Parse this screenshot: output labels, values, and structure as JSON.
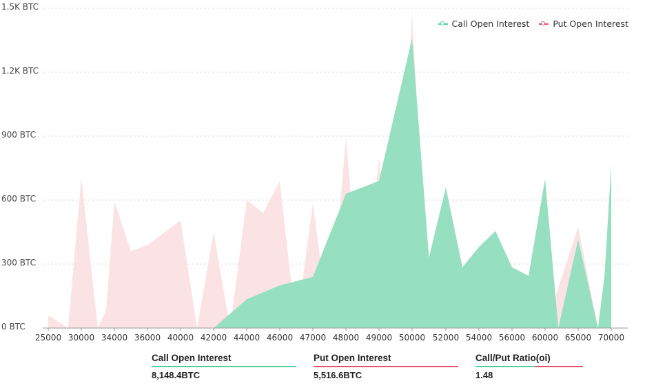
{
  "colors": {
    "call": "#4ecf9b",
    "call_fill": "#96dfc0",
    "put": "#e8506a",
    "put_fill": "#fbe3e5",
    "grid": "#dddddd"
  },
  "legend": {
    "call_label": "Call Open Interest",
    "put_label": "Put  Open Interest"
  },
  "y_axis": {
    "ticks": [
      {
        "label": "1.5K BTC",
        "value": 1500
      },
      {
        "label": "1.2K BTC",
        "value": 1200
      },
      {
        "label": "900 BTC",
        "value": 900
      },
      {
        "label": "600 BTC",
        "value": 600
      },
      {
        "label": "300 BTC",
        "value": 300
      },
      {
        "label": "0 BTC",
        "value": 0
      }
    ]
  },
  "x_axis": {
    "labels": [
      "25000",
      "30000",
      "34000",
      "36000",
      "40000",
      "42000",
      "44000",
      "46000",
      "47000",
      "48000",
      "49000",
      "50000",
      "52000",
      "54000",
      "56000",
      "60000",
      "65000",
      "70000"
    ]
  },
  "summary": {
    "call_label": "Call Open Interest",
    "call_value": "8,148.4BTC",
    "put_label": "Put Open Interest",
    "put_value": "5,516.6BTC",
    "ratio_label": "Call/Put Ratio(oi)",
    "ratio_value": "1.48"
  },
  "chart_data": {
    "type": "area",
    "ylim": [
      0,
      1500
    ],
    "series": [
      {
        "name": "Call Open Interest",
        "points": [
          [
            "25000",
            0
          ],
          [
            "30000",
            0
          ],
          [
            "34000",
            0
          ],
          [
            "36000",
            0
          ],
          [
            "40000",
            0
          ],
          [
            "42000",
            0
          ],
          [
            "44000",
            135
          ],
          [
            "46000",
            200
          ],
          [
            "47000",
            240
          ],
          [
            "48000",
            630
          ],
          [
            "49000",
            690
          ],
          [
            "50000",
            1360
          ],
          [
            "51000",
            330
          ],
          [
            "52000",
            660
          ],
          [
            "53000",
            285
          ],
          [
            "54000",
            380
          ],
          [
            "55000",
            455
          ],
          [
            "56000",
            285
          ],
          [
            "58000",
            245
          ],
          [
            "60000",
            700
          ],
          [
            "62000",
            0
          ],
          [
            "65000",
            415
          ],
          [
            "68000",
            0
          ],
          [
            "69000",
            250
          ],
          [
            "70000",
            770
          ]
        ]
      },
      {
        "name": "Put  Open Interest",
        "points": [
          [
            "25000",
            60
          ],
          [
            "28000",
            0
          ],
          [
            "30000",
            705
          ],
          [
            "32000",
            0
          ],
          [
            "33000",
            85
          ],
          [
            "34000",
            595
          ],
          [
            "35000",
            360
          ],
          [
            "36000",
            390
          ],
          [
            "40000",
            505
          ],
          [
            "41000",
            0
          ],
          [
            "42000",
            450
          ],
          [
            "43000",
            0
          ],
          [
            "44000",
            600
          ],
          [
            "45000",
            540
          ],
          [
            "46000",
            690
          ],
          [
            "46500",
            0
          ],
          [
            "47000",
            585
          ],
          [
            "47500",
            0
          ],
          [
            "48000",
            895
          ],
          [
            "48500",
            0
          ],
          [
            "49000",
            800
          ],
          [
            "49500",
            0
          ],
          [
            "50000",
            1480
          ],
          [
            "51000",
            0
          ],
          [
            "52000",
            665
          ],
          [
            "53000",
            0
          ],
          [
            "54000",
            0
          ],
          [
            "55000",
            0
          ],
          [
            "56000",
            0
          ],
          [
            "58000",
            0
          ],
          [
            "60000",
            0
          ],
          [
            "65000",
            475
          ],
          [
            "68000",
            0
          ],
          [
            "70000",
            0
          ]
        ]
      }
    ]
  }
}
